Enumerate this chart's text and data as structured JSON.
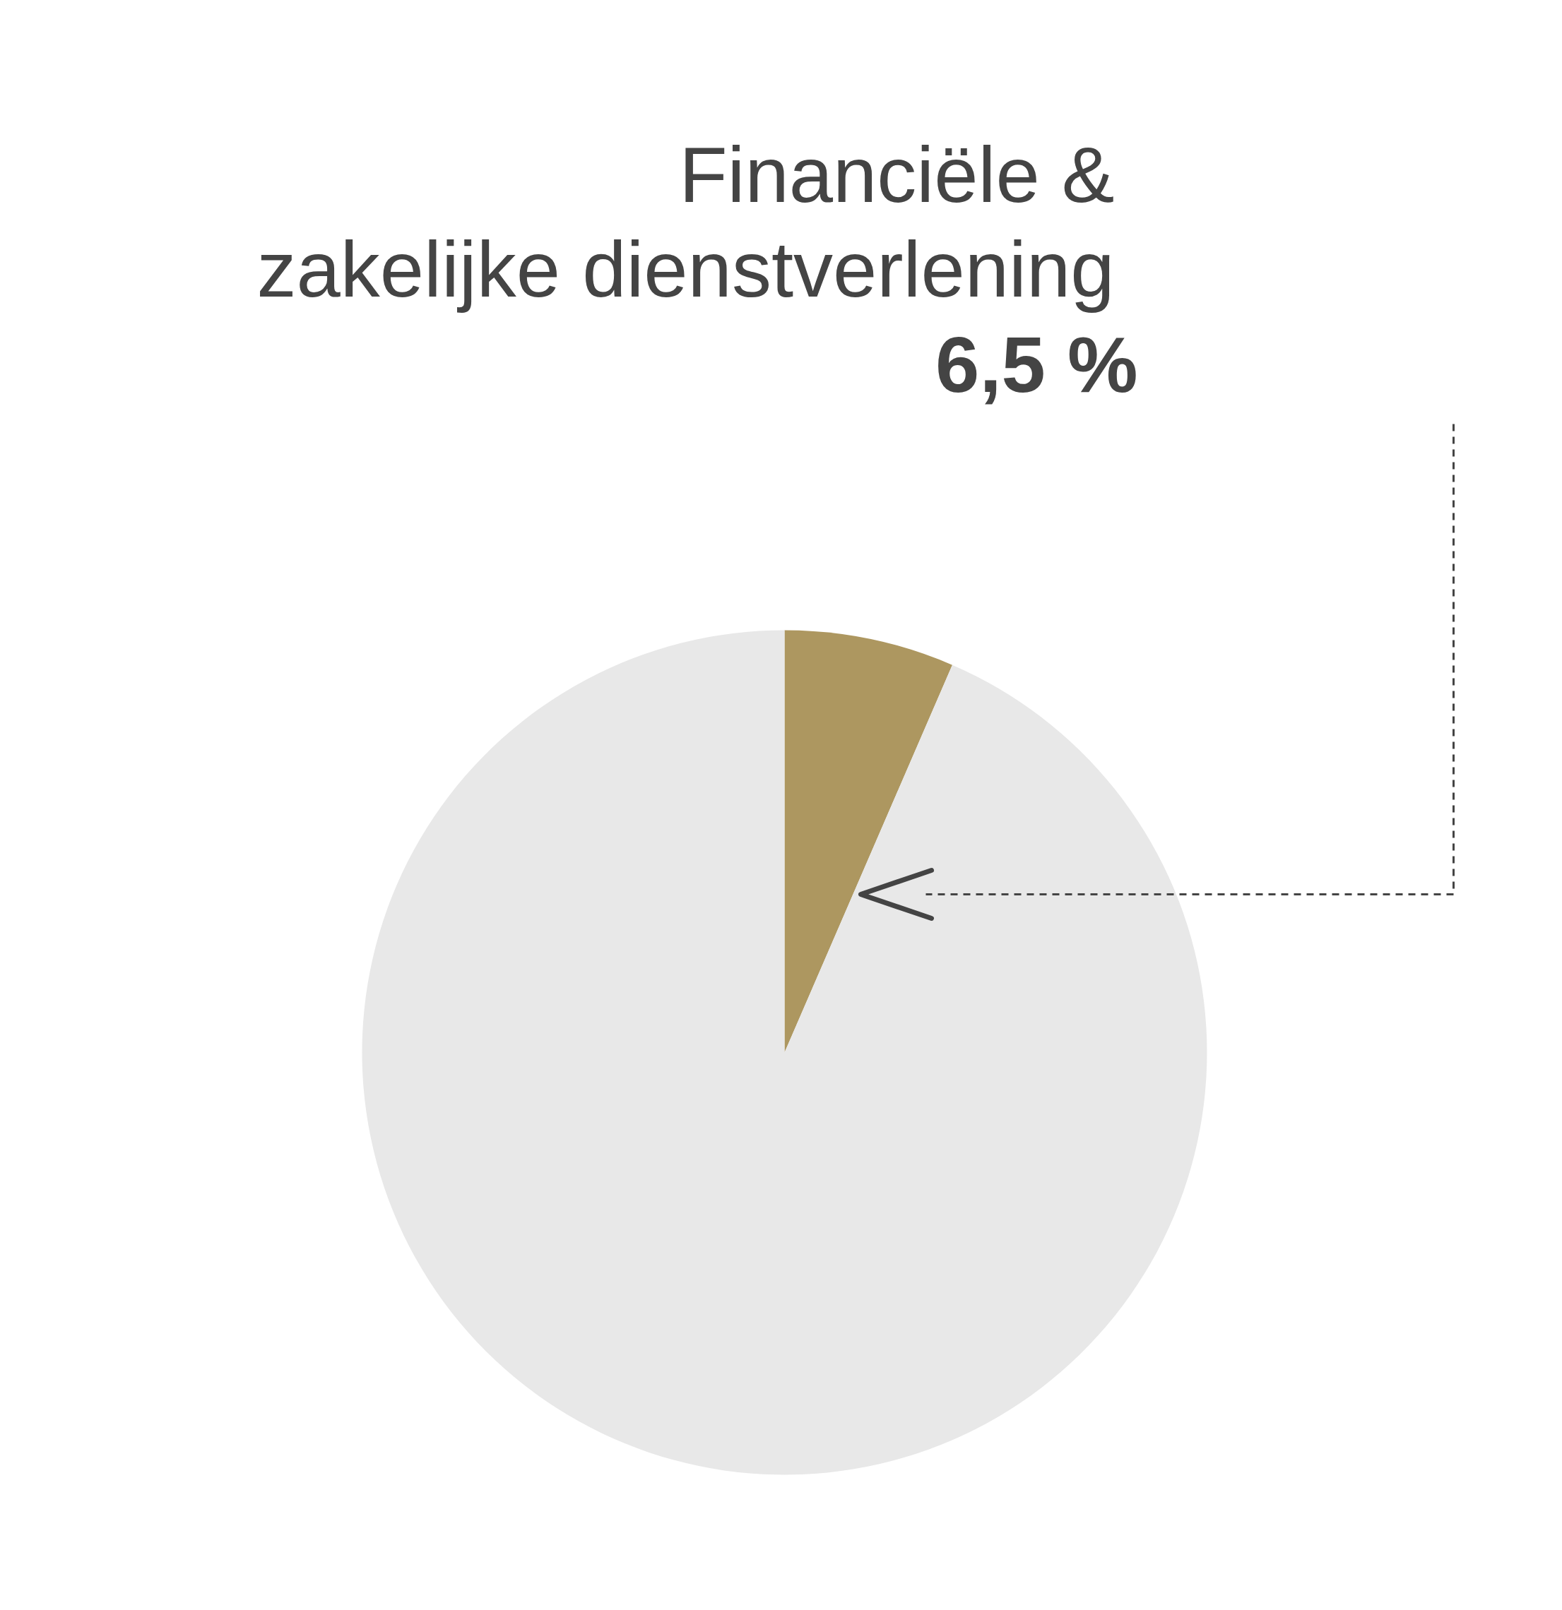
{
  "chart_data": {
    "type": "pie",
    "categories": [
      "Financiële & zakelijke dienstverlening",
      null
    ],
    "values": [
      6.5,
      93.5
    ],
    "colors": [
      "#ad9760",
      "#e8e8e8"
    ],
    "value_labels": [
      "6,5 %",
      null
    ]
  }
}
